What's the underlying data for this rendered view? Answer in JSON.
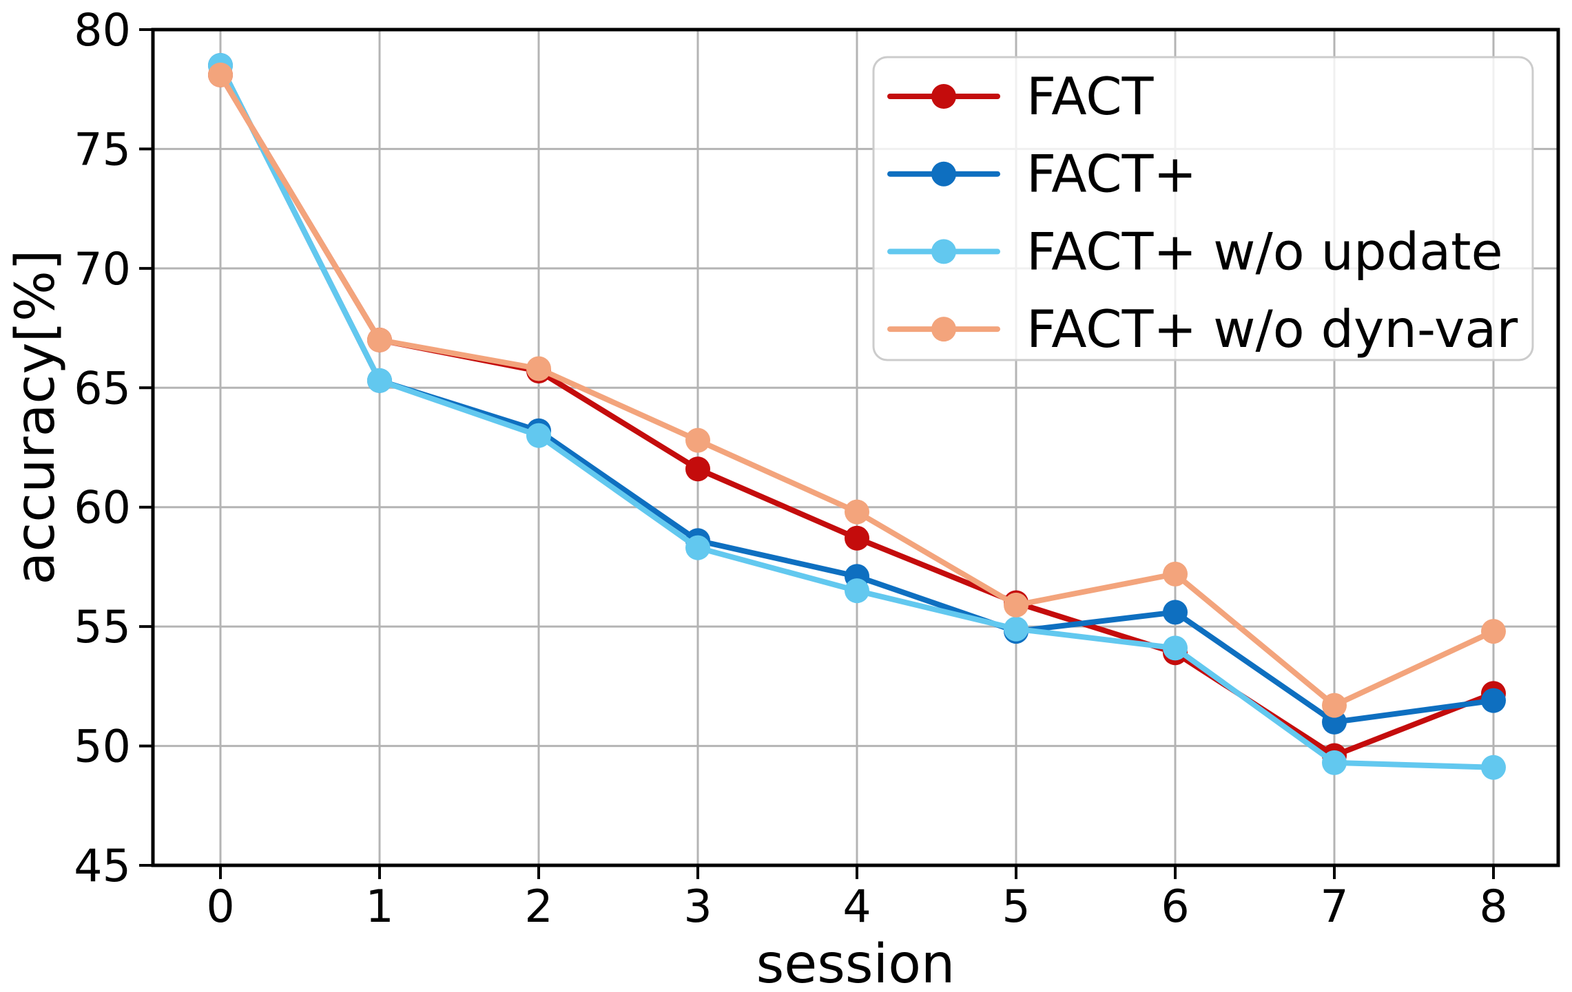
{
  "figure": {
    "background": "#ffffff",
    "grid_color": "#b4b4b4",
    "spine_color": "#000000",
    "legend_border_color": "#cccccc",
    "legend_background": "#ffffff"
  },
  "chart_data": {
    "type": "line",
    "title": "",
    "xlabel": "session",
    "ylabel": "accuracy[%]",
    "x": [
      0,
      1,
      2,
      3,
      4,
      5,
      6,
      7,
      8
    ],
    "xtick_labels": [
      "0",
      "1",
      "2",
      "3",
      "4",
      "5",
      "6",
      "7",
      "8"
    ],
    "ytick_values": [
      45,
      50,
      55,
      60,
      65,
      70,
      75,
      80
    ],
    "ytick_labels": [
      "45",
      "50",
      "55",
      "60",
      "65",
      "70",
      "75",
      "80"
    ],
    "ylim": [
      45,
      80
    ],
    "grid": true,
    "legend_position": "upper right",
    "legend_entries": [
      "FACT",
      "FACT+",
      "FACT+ w/o update",
      "FACT+ w/o dyn-var"
    ],
    "series": [
      {
        "name": "FACT",
        "color": "#c40c0c",
        "marker": "circle",
        "values": [
          78.1,
          67.0,
          65.7,
          61.6,
          58.7,
          56.0,
          53.9,
          49.6,
          52.2
        ]
      },
      {
        "name": "FACT+",
        "color": "#0e6fc0",
        "marker": "circle",
        "values": [
          78.5,
          65.3,
          63.2,
          58.6,
          57.1,
          54.8,
          55.6,
          51.0,
          51.9
        ]
      },
      {
        "name": "FACT+ w/o update",
        "color": "#62c8ef",
        "marker": "circle",
        "values": [
          78.5,
          65.3,
          63.0,
          58.3,
          56.5,
          54.9,
          54.1,
          49.3,
          49.1
        ]
      },
      {
        "name": "FACT+ w/o dyn-var",
        "color": "#f3a47c",
        "marker": "circle",
        "values": [
          78.1,
          67.0,
          65.8,
          62.8,
          59.8,
          55.9,
          57.2,
          51.7,
          54.8
        ]
      }
    ]
  }
}
